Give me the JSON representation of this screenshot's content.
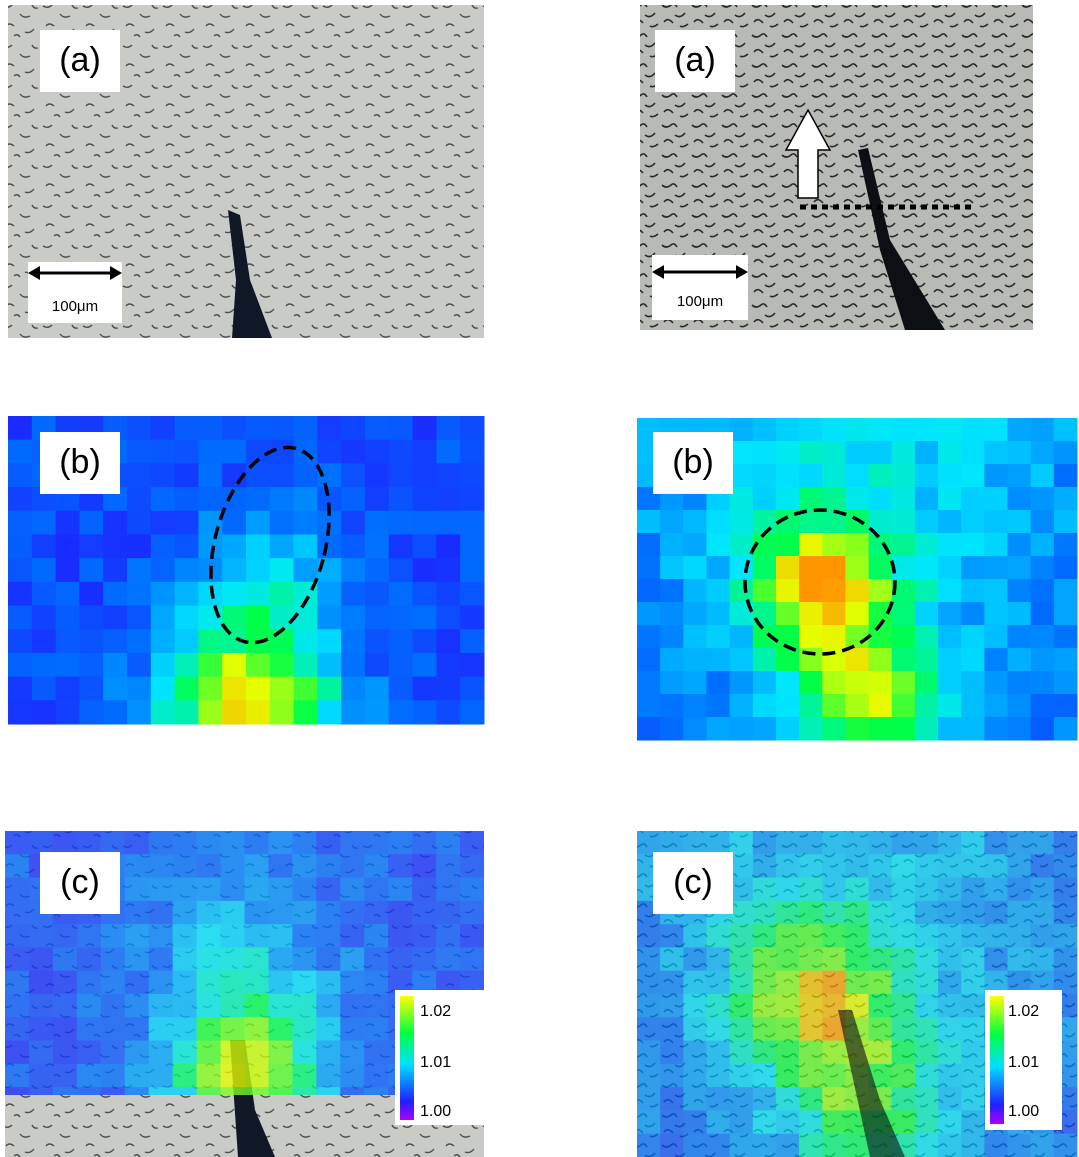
{
  "panels": [
    {
      "label": "(a)",
      "scale_bar": "100μm"
    },
    {
      "label": "(a)",
      "scale_bar": "100μm"
    },
    {
      "label": "(b)"
    },
    {
      "label": "(b)"
    },
    {
      "label": "(c)",
      "colorbar": [
        "1.02",
        "1.01",
        "1.00"
      ]
    },
    {
      "label": "(c)",
      "colorbar": [
        "1.02",
        "1.01",
        "1.00"
      ]
    }
  ]
}
